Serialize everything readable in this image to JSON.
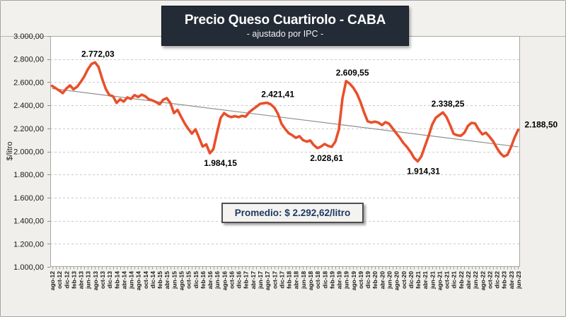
{
  "title": {
    "text": "Precio Queso Cuartirolo - CABA",
    "subtitle": "- ajustado por IPC -"
  },
  "average_box": {
    "label": "Promedio: $ 2.292,62/litro"
  },
  "y_axis": {
    "title": "$/litro",
    "tick_labels": [
      "3.000,00",
      "2.800,00",
      "2.600,00",
      "2.400,00",
      "2.200,00",
      "2.000,00",
      "1.800,00",
      "1.600,00",
      "1.400,00",
      "1.200,00",
      "1.000,00"
    ],
    "min": 1000,
    "max": 3000,
    "step": 200
  },
  "x_axis": {
    "tick_labels": [
      "ago-12",
      "oct-12",
      "dic-12",
      "feb-13",
      "abr-13",
      "jun-13",
      "ago-13",
      "oct-13",
      "dic-13",
      "feb-14",
      "abr-14",
      "jun-14",
      "ago-14",
      "oct-14",
      "dic-14",
      "feb-15",
      "abr-15",
      "jun-15",
      "ago-15",
      "oct-15",
      "dic-15",
      "feb-16",
      "abr-16",
      "jun-16",
      "ago-16",
      "oct-16",
      "dic-16",
      "feb-17",
      "abr-17",
      "jun-17",
      "ago-17",
      "oct-17",
      "dic-17",
      "feb-18",
      "abr-18",
      "jun-18",
      "ago-18",
      "oct-18",
      "dic-18",
      "feb-19",
      "abr-19",
      "jun-19",
      "ago-19",
      "oct-19",
      "dic-19",
      "feb-20",
      "abr-20",
      "jun-20",
      "ago-20",
      "oct-20",
      "dic-20",
      "feb-21",
      "abr-21",
      "jun-21",
      "ago-21",
      "oct-21",
      "dic-21",
      "feb-22",
      "abr-22",
      "jun-22",
      "ago-22",
      "oct-22",
      "dic-22",
      "feb-23",
      "abr-23",
      "jun-23"
    ]
  },
  "colors": {
    "series_line": "#E8502B",
    "trend_line": "#8F8F8D",
    "title_box_bg": "#232B36",
    "title_text": "#FFFFFF",
    "average_text": "#1F3864",
    "canvas_bg": "#F0EFEB",
    "plot_bg": "#FFFFFF",
    "gridline": "#CBCAC6",
    "axis_border": "#A7A7A3",
    "annotation_text": "#000000"
  },
  "chart_data": {
    "type": "line",
    "title": "Precio Queso Cuartirolo - CABA",
    "subtitle": "- ajustado por IPC -",
    "ylabel": "$/litro",
    "ylim": [
      1000,
      3000
    ],
    "grid": "horizontal-dashed",
    "legend": "none",
    "x_start": "ago-12",
    "x_end": "jun-23",
    "x": [
      "ago-12",
      "sep-12",
      "oct-12",
      "nov-12",
      "dic-12",
      "ene-13",
      "feb-13",
      "mar-13",
      "abr-13",
      "may-13",
      "jun-13",
      "jul-13",
      "ago-13",
      "sep-13",
      "oct-13",
      "nov-13",
      "dic-13",
      "ene-14",
      "feb-14",
      "mar-14",
      "abr-14",
      "may-14",
      "jun-14",
      "jul-14",
      "ago-14",
      "sep-14",
      "oct-14",
      "nov-14",
      "dic-14",
      "ene-15",
      "feb-15",
      "mar-15",
      "abr-15",
      "may-15",
      "jun-15",
      "jul-15",
      "ago-15",
      "sep-15",
      "oct-15",
      "nov-15",
      "dic-15",
      "ene-16",
      "feb-16",
      "mar-16",
      "abr-16",
      "may-16",
      "jun-16",
      "jul-16",
      "ago-16",
      "sep-16",
      "oct-16",
      "nov-16",
      "dic-16",
      "ene-17",
      "feb-17",
      "mar-17",
      "abr-17",
      "may-17",
      "jun-17",
      "jul-17",
      "ago-17",
      "sep-17",
      "oct-17",
      "nov-17",
      "dic-17",
      "ene-18",
      "feb-18",
      "mar-18",
      "abr-18",
      "may-18",
      "jun-18",
      "jul-18",
      "ago-18",
      "sep-18",
      "oct-18",
      "nov-18",
      "dic-18",
      "ene-19",
      "feb-19",
      "mar-19",
      "abr-19",
      "may-19",
      "jun-19",
      "jul-19",
      "ago-19",
      "sep-19",
      "oct-19",
      "nov-19",
      "dic-19",
      "ene-20",
      "feb-20",
      "mar-20",
      "abr-20",
      "may-20",
      "jun-20",
      "jul-20",
      "ago-20",
      "sep-20",
      "oct-20",
      "nov-20",
      "dic-20",
      "ene-21",
      "feb-21",
      "mar-21",
      "abr-21",
      "may-21",
      "jun-21",
      "jul-21",
      "ago-21",
      "sep-21",
      "oct-21",
      "nov-21",
      "dic-21",
      "ene-22",
      "feb-22",
      "mar-22",
      "abr-22",
      "may-22",
      "jun-22",
      "jul-22",
      "ago-22",
      "sep-22",
      "oct-22",
      "nov-22",
      "dic-22",
      "ene-23",
      "feb-23",
      "mar-23",
      "abr-23",
      "may-23",
      "jun-23"
    ],
    "series": [
      {
        "name": "Precio queso cuartirolo ajustado por IPC ($/litro)",
        "color": "#E8502B",
        "values": [
          2568,
          2548,
          2528,
          2505,
          2545,
          2572,
          2538,
          2560,
          2602,
          2650,
          2712,
          2758,
          2772.03,
          2730,
          2628,
          2540,
          2488,
          2478,
          2420,
          2452,
          2432,
          2468,
          2455,
          2488,
          2472,
          2492,
          2478,
          2452,
          2442,
          2428,
          2408,
          2448,
          2462,
          2420,
          2332,
          2360,
          2300,
          2242,
          2196,
          2155,
          2192,
          2118,
          2042,
          2062,
          1984.15,
          2020,
          2160,
          2290,
          2332,
          2308,
          2297,
          2306,
          2297,
          2308,
          2302,
          2340,
          2365,
          2388,
          2412,
          2418,
          2421.41,
          2408,
          2380,
          2325,
          2240,
          2195,
          2158,
          2140,
          2118,
          2132,
          2098,
          2085,
          2095,
          2055,
          2028.61,
          2042,
          2065,
          2048,
          2040,
          2085,
          2190,
          2462,
          2609.55,
          2588,
          2552,
          2502,
          2430,
          2340,
          2262,
          2250,
          2258,
          2250,
          2228,
          2254,
          2240,
          2198,
          2158,
          2118,
          2072,
          2038,
          1995,
          1942,
          1914.31,
          1958,
          2048,
          2132,
          2232,
          2292,
          2315,
          2338.25,
          2298,
          2228,
          2152,
          2140,
          2136,
          2162,
          2222,
          2248,
          2242,
          2188,
          2148,
          2162,
          2128,
          2088,
          2032,
          1985,
          1956,
          1972,
          2038,
          2122,
          2188.5
        ]
      }
    ],
    "trendline": {
      "type": "linear",
      "start_value": 2545,
      "end_value": 2040,
      "color": "#8F8F8D"
    },
    "average": 2292.62,
    "annotations": [
      {
        "label": "2.772,03",
        "index": 12,
        "placement": "above",
        "dx": 4
      },
      {
        "label": "1.984,15",
        "index": 44,
        "placement": "below",
        "dx": 15
      },
      {
        "label": "2.421,41",
        "index": 60,
        "placement": "above",
        "dx": 15
      },
      {
        "label": "2.028,61",
        "index": 74,
        "placement": "below",
        "dx": 13
      },
      {
        "label": "2.609,55",
        "index": 82,
        "placement": "above",
        "dx": 9
      },
      {
        "label": "1.914,31",
        "index": 102,
        "placement": "below",
        "dx": 8
      },
      {
        "label": "2.338,25",
        "index": 109,
        "placement": "above",
        "dx": 7
      },
      {
        "label": "2.188,50",
        "index": 130,
        "placement": "right",
        "dx": 9
      }
    ]
  }
}
